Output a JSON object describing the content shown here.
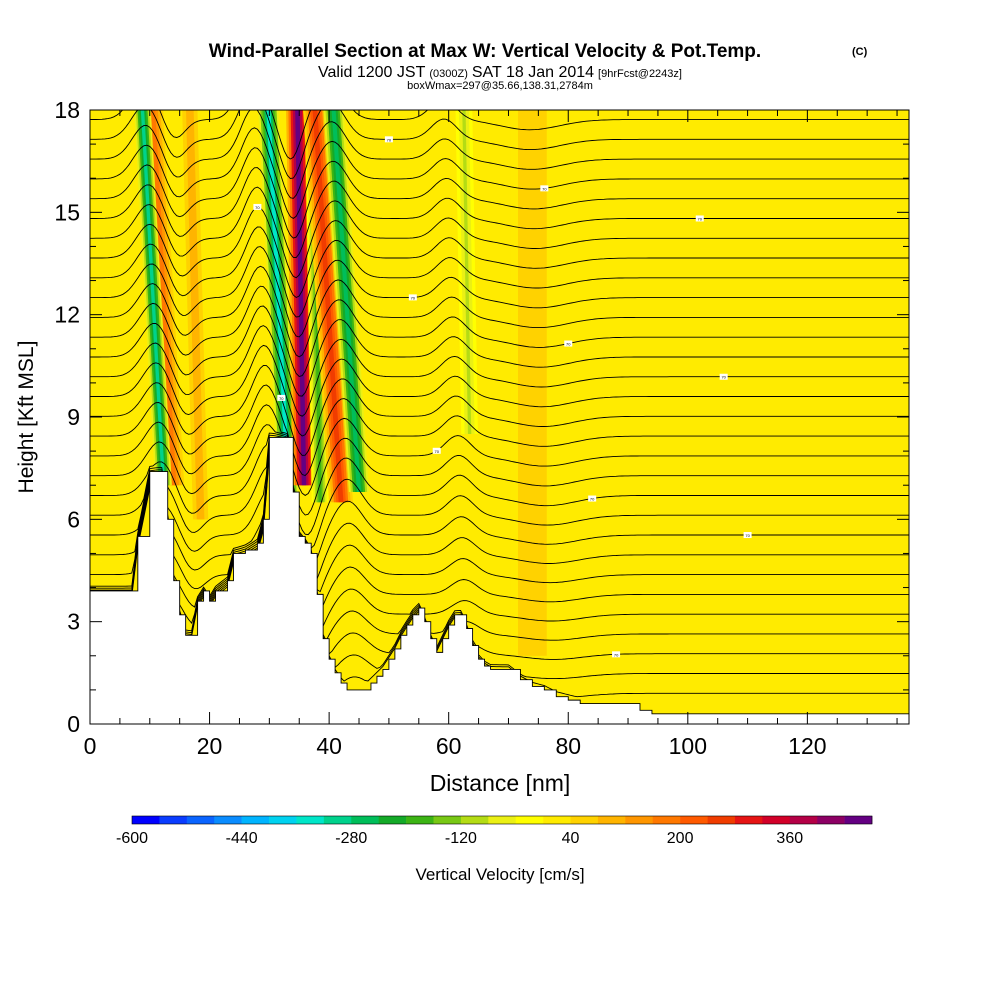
{
  "chart_data": {
    "type": "heatmap",
    "title": "Wind-Parallel Section at Max W: Vertical Velocity & Pot.Temp.",
    "copyright_mark": "(C)",
    "subtitle": {
      "valid_prefix": "Valid 1200 JST",
      "utc_time": "(0300Z)",
      "valid_date": "SAT 18 Jan 2014",
      "forecast_info": "[9hrFcst@2243z]",
      "box_info": "boxWmax=297@35.66,138.31,2784m"
    },
    "xlabel": "Distance [nm]",
    "ylabel": "Height [Kft MSL]",
    "xlim": [
      0,
      137
    ],
    "ylim": [
      0,
      18
    ],
    "x_ticks": [
      0,
      20,
      40,
      60,
      80,
      100,
      120
    ],
    "x_tick_labels": [
      "0",
      "20",
      "40",
      "60",
      "80",
      "100",
      "120"
    ],
    "y_ticks": [
      0,
      3,
      6,
      9,
      12,
      15,
      18
    ],
    "y_tick_labels": [
      "0",
      "3",
      "6",
      "9",
      "12",
      "15",
      "18"
    ],
    "colorbar": {
      "label": "Vertical Velocity [cm/s]",
      "min": -600,
      "max": 500,
      "step": 40,
      "tick_values": [
        -600,
        -440,
        -280,
        -120,
        40,
        200,
        360
      ],
      "tick_labels": [
        "-600",
        "-440",
        "-280",
        "-120",
        "40",
        "200",
        "360"
      ],
      "colors": [
        "#0000ff",
        "#0a3cff",
        "#0a64ff",
        "#0a8cff",
        "#00b4ff",
        "#00d2f0",
        "#00e6c8",
        "#00d28c",
        "#00be5a",
        "#14aa28",
        "#3cb414",
        "#78c814",
        "#b4dc14",
        "#ebf014",
        "#ffff00",
        "#ffeb00",
        "#ffd200",
        "#ffb400",
        "#ff9600",
        "#ff7800",
        "#ff5a00",
        "#f03c00",
        "#e61414",
        "#d20028",
        "#b40046",
        "#8c0064",
        "#640082"
      ]
    },
    "velocity_features": [
      {
        "kind": "updraft",
        "x_center": 14,
        "width": 2.2,
        "z_bottom": 7.0,
        "z_top": 18,
        "tilt_nm_per_kft": -0.32,
        "value": 200
      },
      {
        "kind": "downdraft",
        "x_center": 12.3,
        "width": 1.4,
        "z_bottom": 7.0,
        "z_top": 18,
        "tilt_nm_per_kft": -0.32,
        "value": -300
      },
      {
        "kind": "updraft",
        "x_center": 18.5,
        "width": 1.6,
        "z_bottom": 6.0,
        "z_top": 18,
        "tilt_nm_per_kft": -0.15,
        "value": 120
      },
      {
        "kind": "downdraft",
        "x_center": 33.2,
        "width": 1.7,
        "z_bottom": 6.8,
        "z_top": 18,
        "tilt_nm_per_kft": -0.3,
        "value": -330
      },
      {
        "kind": "updraft",
        "x_center": 35.8,
        "width": 1.9,
        "z_bottom": 7.0,
        "z_top": 18,
        "tilt_nm_per_kft": -0.1,
        "value": 470
      },
      {
        "kind": "downdraft",
        "x_center": 38.5,
        "width": 1.4,
        "z_bottom": 6.5,
        "z_top": 18,
        "tilt_nm_per_kft": -0.1,
        "value": -200
      },
      {
        "kind": "updraft",
        "x_center": 42.0,
        "width": 2.0,
        "z_bottom": 6.5,
        "z_top": 18,
        "tilt_nm_per_kft": -0.38,
        "value": 280
      },
      {
        "kind": "downdraft",
        "x_center": 45.0,
        "width": 1.7,
        "z_bottom": 6.8,
        "z_top": 18,
        "tilt_nm_per_kft": -0.38,
        "value": -280
      },
      {
        "kind": "downdraft",
        "x_center": 63.5,
        "width": 1.4,
        "z_bottom": 8.5,
        "z_top": 18,
        "tilt_nm_per_kft": -0.1,
        "value": -100
      },
      {
        "kind": "updraft",
        "x_center": 74,
        "width": 6,
        "z_bottom": 2,
        "z_top": 18,
        "tilt_nm_per_kft": 0,
        "value": 60
      }
    ],
    "terrain_profile": {
      "x": [
        0,
        2,
        7,
        8,
        10,
        12,
        13,
        14,
        15,
        16,
        17,
        18,
        19,
        20,
        21,
        23,
        24,
        26,
        28,
        29,
        30,
        31,
        33,
        34,
        35,
        36,
        37,
        38,
        39,
        40,
        41,
        42,
        43,
        45,
        46,
        47,
        48,
        49,
        50,
        51,
        52,
        53,
        54,
        55,
        56,
        57,
        58,
        59,
        60,
        61,
        62,
        63,
        64,
        65,
        66,
        67,
        68,
        70,
        72,
        74,
        76,
        78,
        80,
        82,
        84,
        86,
        88,
        90,
        92,
        94,
        96,
        98,
        100,
        105,
        110,
        115,
        120,
        125,
        130,
        135,
        137
      ],
      "z": [
        3.9,
        3.9,
        3.9,
        5.5,
        7.4,
        7.4,
        6.0,
        4.2,
        3.2,
        2.6,
        2.6,
        3.6,
        3.9,
        3.6,
        3.9,
        4.2,
        5.0,
        5.1,
        5.3,
        6.0,
        8.4,
        8.4,
        8.4,
        6.8,
        5.5,
        5.3,
        5.0,
        3.8,
        2.5,
        1.9,
        1.5,
        1.2,
        1.0,
        1.0,
        1.0,
        1.2,
        1.4,
        1.6,
        1.9,
        2.2,
        2.6,
        2.9,
        3.2,
        3.4,
        3.0,
        2.5,
        2.1,
        2.5,
        2.9,
        3.2,
        3.2,
        2.8,
        2.3,
        1.9,
        1.7,
        1.6,
        1.6,
        1.6,
        1.3,
        1.1,
        1.0,
        0.8,
        0.7,
        0.6,
        0.6,
        0.6,
        0.6,
        0.6,
        0.4,
        0.3,
        0.3,
        0.3,
        0.3,
        0.3,
        0.3,
        0.3,
        0.3,
        0.3,
        0.3,
        0.3,
        0.3
      ]
    },
    "theta_contours": {
      "z_start": 0.9,
      "z_step": 0.58,
      "count": 30,
      "wave_components": [
        {
          "x": 13.5,
          "amplitude": 1.0,
          "width": 3.2
        },
        {
          "x": 18.5,
          "amplitude": -0.6,
          "width": 2.5
        },
        {
          "x": 31.5,
          "amplitude": 1.5,
          "width": 3.0
        },
        {
          "x": 38.0,
          "amplitude": -1.2,
          "width": 2.4
        },
        {
          "x": 44.5,
          "amplitude": 1.1,
          "width": 3.4
        },
        {
          "x": 63.5,
          "amplitude": 0.6,
          "width": 3.0
        },
        {
          "x": 78.0,
          "amplitude": -0.3,
          "width": 7.0
        }
      ],
      "label_text": "70"
    }
  }
}
